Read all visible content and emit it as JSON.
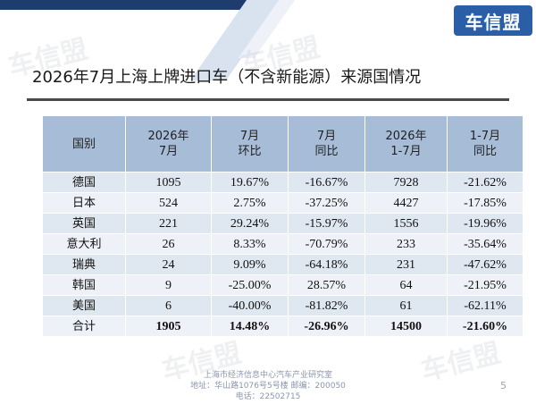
{
  "brand": "车信盟",
  "watermark_text": "车信盟",
  "title": "2026年7月上海上牌进口车（不含新能源）来源国情况",
  "table": {
    "headers": [
      [
        "国别",
        ""
      ],
      [
        "2026年",
        "7月"
      ],
      [
        "7月",
        "环比"
      ],
      [
        "7月",
        "同比"
      ],
      [
        "2026年",
        "1-7月"
      ],
      [
        "1-7月",
        "同比"
      ]
    ],
    "rows": [
      [
        "德国",
        "1095",
        "19.67%",
        "-16.67%",
        "7928",
        "-21.62%"
      ],
      [
        "日本",
        "524",
        "2.75%",
        "-37.25%",
        "4427",
        "-17.85%"
      ],
      [
        "英国",
        "221",
        "29.24%",
        "-15.97%",
        "1556",
        "-19.96%"
      ],
      [
        "意大利",
        "26",
        "8.33%",
        "-70.79%",
        "233",
        "-35.64%"
      ],
      [
        "瑞典",
        "24",
        "9.09%",
        "-64.18%",
        "231",
        "-47.62%"
      ],
      [
        "韩国",
        "9",
        "-25.00%",
        "28.57%",
        "64",
        "-21.95%"
      ],
      [
        "美国",
        "6",
        "-40.00%",
        "-81.82%",
        "61",
        "-62.11%"
      ],
      [
        "合计",
        "1905",
        "14.48%",
        "-26.96%",
        "14500",
        "-21.60%"
      ]
    ]
  },
  "footer": {
    "line1": "上海市经济信息中心汽车产业研究室",
    "line2": "地址：华山路1076号5号楼   邮编：200050",
    "line3": "电话：22502715"
  },
  "page_number": "5",
  "colors": {
    "header_bg": "#a7bcd6",
    "row_odd_bg": "#dfe7f1",
    "row_even_bg": "#eef2f8",
    "brand_bg": "#2a5fa8",
    "top_bar": "#1f3c6e"
  }
}
